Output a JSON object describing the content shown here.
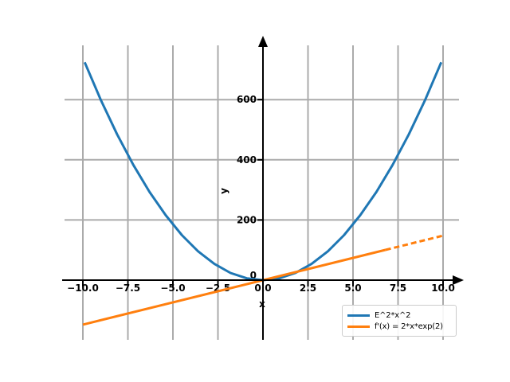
{
  "chart_data": {
    "type": "line",
    "title": "",
    "xlabel": "x",
    "ylabel": "y",
    "xlim": [
      -11.1,
      10.9
    ],
    "ylim": [
      -205,
      780
    ],
    "grid": true,
    "grid_color": "#ababab",
    "spine_color": "#000000",
    "tick_label_color": "#000000",
    "xticks": [
      -10,
      -7.5,
      -5,
      -2.5,
      0,
      2.5,
      5,
      7.5,
      10
    ],
    "xtick_labels": [
      "−10.0",
      "−7.5",
      "−5.0",
      "−2.5",
      "0.0",
      "2.5",
      "5.0",
      "7.5",
      "10.0"
    ],
    "yticks": [
      0,
      200,
      400,
      600
    ],
    "ytick_labels": [
      "0",
      "200",
      "400",
      "600"
    ],
    "legend_position": "lower right",
    "series": [
      {
        "name": "E^2*x^2",
        "color": "#1f77b4",
        "style": "solid",
        "line_width": 3,
        "points": [
          [
            -9.9,
            724.2
          ],
          [
            -9,
            598.5
          ],
          [
            -8.1,
            484.8
          ],
          [
            -7.2,
            383.0
          ],
          [
            -6.3,
            293.3
          ],
          [
            -5.4,
            215.5
          ],
          [
            -4.5,
            149.6
          ],
          [
            -3.6,
            95.8
          ],
          [
            -2.7,
            53.9
          ],
          [
            -1.8,
            23.9
          ],
          [
            -0.9,
            6.0
          ],
          [
            0,
            0
          ],
          [
            0.9,
            6.0
          ],
          [
            1.8,
            23.9
          ],
          [
            2.7,
            53.9
          ],
          [
            3.6,
            95.8
          ],
          [
            4.5,
            149.6
          ],
          [
            5.4,
            215.5
          ],
          [
            6.3,
            293.3
          ],
          [
            7.2,
            383.0
          ],
          [
            8.1,
            484.8
          ],
          [
            9,
            598.5
          ],
          [
            9.9,
            724.2
          ]
        ]
      },
      {
        "name": "f'(x) = 2*x*exp(2)",
        "color": "#ff7f0e",
        "style": "solid",
        "line_width": 3,
        "points": [
          [
            -10,
            -147.8
          ],
          [
            6.8,
            100.5
          ]
        ]
      },
      {
        "name": "f'(x) = 2*x*exp(2) (dashed tail)",
        "color": "#ff7f0e",
        "style": "dashed",
        "line_width": 3,
        "points": [
          [
            6.8,
            100.5
          ],
          [
            10,
            147.8
          ]
        ]
      }
    ]
  },
  "legend": {
    "entries": [
      {
        "label": "E^2*x^2",
        "color": "#1f77b4"
      },
      {
        "label": "f'(x) = 2*x*exp(2)",
        "color": "#ff7f0e"
      }
    ]
  }
}
